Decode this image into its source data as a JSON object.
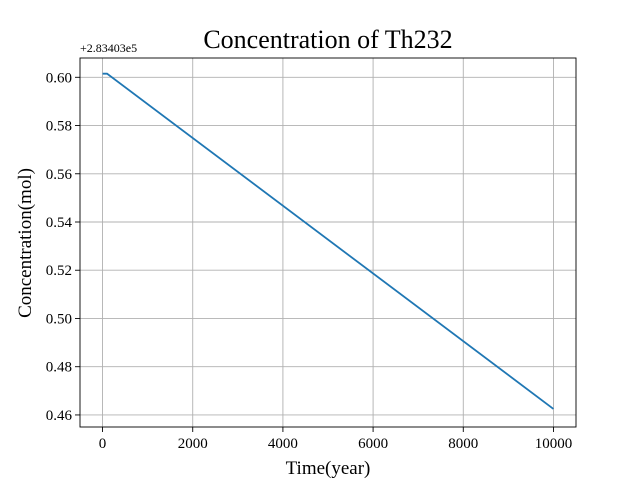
{
  "chart_data": {
    "type": "line",
    "title": "Concentration of Th232",
    "xlabel": "Time(year)",
    "ylabel": "Concentration(mol)",
    "y_offset_label": "+2.83403e5",
    "xlim": [
      -500,
      10500
    ],
    "ylim": [
      0.455,
      0.608
    ],
    "x_ticks": [
      0,
      2000,
      4000,
      6000,
      8000,
      10000
    ],
    "x_tick_labels": [
      "0",
      "2000",
      "4000",
      "6000",
      "8000",
      "10000"
    ],
    "y_ticks": [
      0.46,
      0.48,
      0.5,
      0.52,
      0.54,
      0.56,
      0.58,
      0.6
    ],
    "y_tick_labels": [
      "0.46",
      "0.48",
      "0.50",
      "0.52",
      "0.54",
      "0.56",
      "0.58",
      "0.60"
    ],
    "grid": true,
    "series": [
      {
        "color": "#1f77b4",
        "x": [
          0,
          100,
          10000
        ],
        "y": [
          0.6015,
          0.6015,
          0.4625
        ]
      }
    ]
  }
}
